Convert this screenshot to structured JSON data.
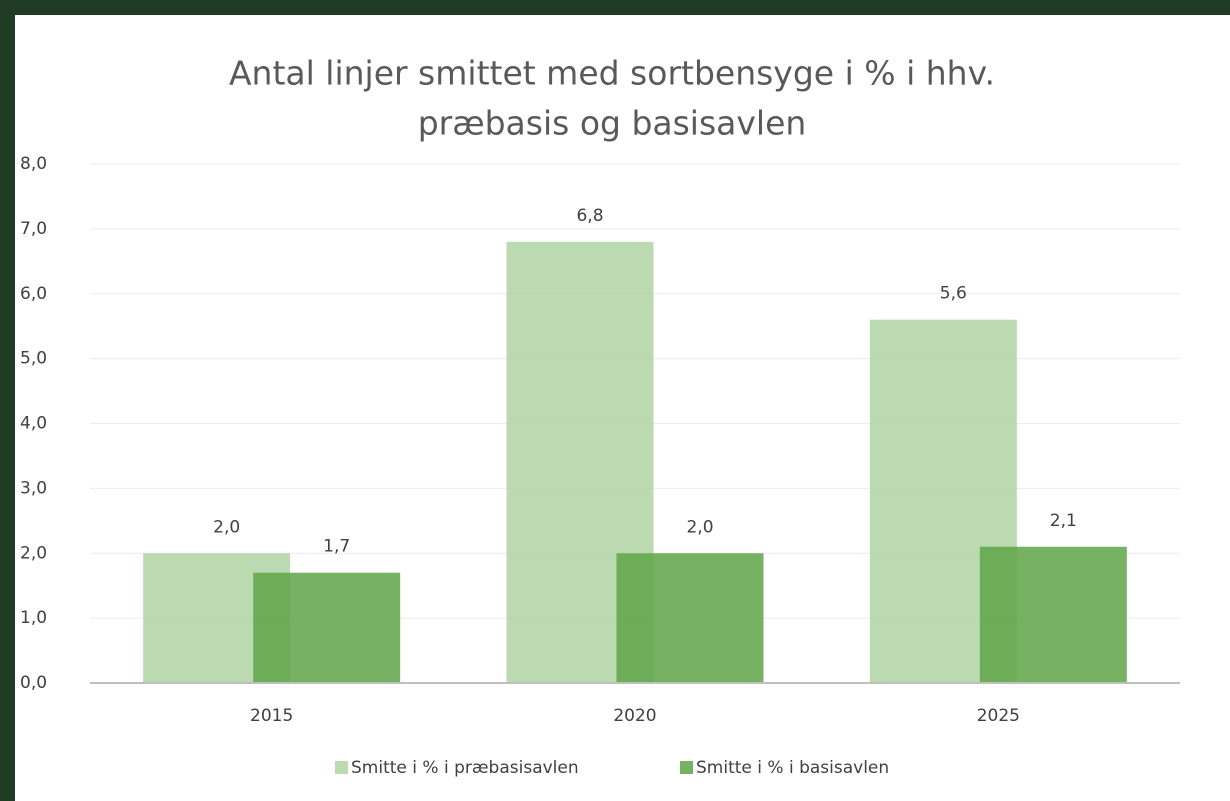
{
  "chart_data": {
    "type": "bar",
    "title": [
      "Antal linjer smittet med sortbensyge i % i hhv.",
      "præbasis og basisavlen"
    ],
    "categories": [
      "2015",
      "2020",
      "2025"
    ],
    "series": [
      {
        "name": "Smitte i % i præbasisavlen",
        "color": "#b0d3a3",
        "values": [
          2.0,
          6.8,
          5.6
        ],
        "value_labels": [
          "2,0",
          "6,8",
          "5,6"
        ]
      },
      {
        "name": "Smitte i % i basisavlen",
        "color": "#5fa548",
        "values": [
          1.7,
          2.0,
          2.1
        ],
        "value_labels": [
          "1,7",
          "2,0",
          "2,1"
        ]
      }
    ],
    "ylim": [
      0,
      8
    ],
    "yticks": [
      {
        "value": 0,
        "label": "0,0"
      },
      {
        "value": 1,
        "label": "1,0"
      },
      {
        "value": 2,
        "label": "2,0"
      },
      {
        "value": 3,
        "label": "3,0"
      },
      {
        "value": 4,
        "label": "4,0"
      },
      {
        "value": 5,
        "label": "5,0"
      },
      {
        "value": 6,
        "label": "6,0"
      },
      {
        "value": 7,
        "label": "7,0"
      },
      {
        "value": 8,
        "label": "8,0"
      }
    ],
    "grid": true,
    "legend": "bottom"
  }
}
